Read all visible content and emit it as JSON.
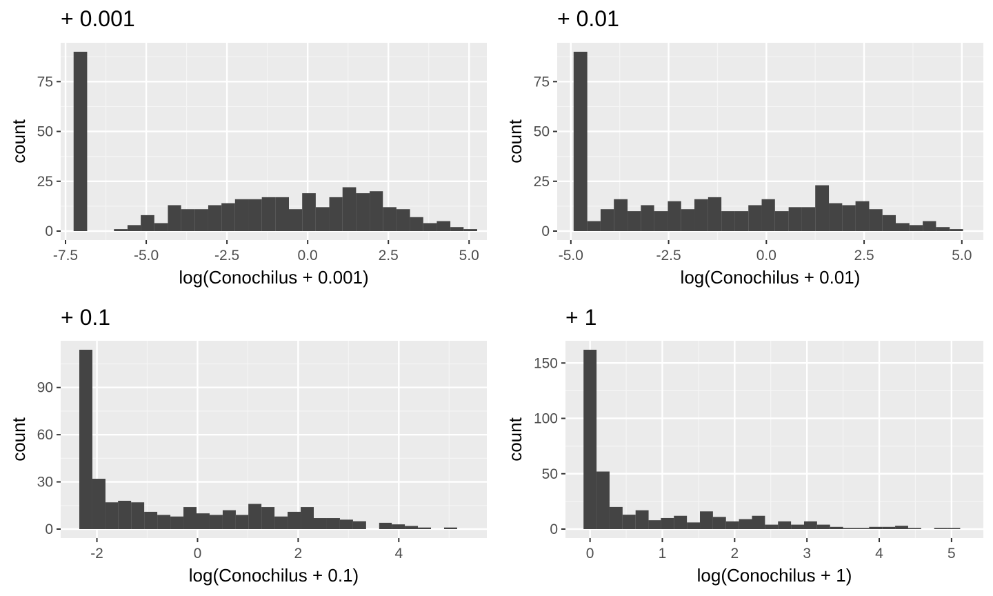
{
  "colors": {
    "panel_bg": "#ebebeb",
    "grid_major": "#ffffff",
    "grid_minor": "#f5f5f5",
    "bar_fill": "#444444",
    "tick_text": "#4d4d4d",
    "tick_mark": "#333333",
    "text": "#000000"
  },
  "chart_data": [
    {
      "type": "bar",
      "title": "+ 0.001",
      "xlabel": "log(Conochilus + 0.001)",
      "ylabel": "count",
      "xlim": [
        -7.65,
        5.55
      ],
      "ylim": [
        -4.5,
        94.5
      ],
      "xticks": [
        -7.5,
        -5.0,
        -2.5,
        0.0,
        2.5,
        5.0
      ],
      "xtick_labels": [
        "-7.5",
        "-5.0",
        "-2.5",
        "0.0",
        "2.5",
        "5.0"
      ],
      "yticks": [
        0,
        25,
        50,
        75
      ],
      "ytick_labels": [
        "0",
        "25",
        "50",
        "75"
      ],
      "grid": true,
      "bins": {
        "x0": [
          -7.25,
          -6.83,
          -6.42,
          -6.0,
          -5.58,
          -5.17,
          -4.75,
          -4.33,
          -3.92,
          -3.5,
          -3.08,
          -2.67,
          -2.25,
          -1.83,
          -1.42,
          -1.0,
          -0.58,
          -0.17,
          0.25,
          0.67,
          1.08,
          1.5,
          1.92,
          2.33,
          2.75,
          3.17,
          3.58,
          4.0,
          4.42,
          4.83
        ],
        "x1": [
          -6.83,
          -6.42,
          -6.0,
          -5.58,
          -5.17,
          -4.75,
          -4.33,
          -3.92,
          -3.5,
          -3.08,
          -2.67,
          -2.25,
          -1.83,
          -1.42,
          -1.0,
          -0.58,
          -0.17,
          0.25,
          0.67,
          1.08,
          1.5,
          1.92,
          2.33,
          2.75,
          3.17,
          3.58,
          4.0,
          4.42,
          4.83,
          5.25
        ],
        "counts": [
          90,
          0,
          0,
          1,
          3,
          8,
          4,
          13,
          11,
          11,
          13,
          14,
          16,
          16,
          17,
          17,
          11,
          19,
          12,
          17,
          22,
          19,
          20,
          12,
          11,
          7,
          4,
          5,
          2,
          1
        ]
      }
    },
    {
      "type": "bar",
      "title": "+ 0.01",
      "xlabel": "log(Conochilus + 0.01)",
      "ylabel": "count",
      "xlim": [
        -5.35,
        5.55
      ],
      "ylim": [
        -4.5,
        94.5
      ],
      "xticks": [
        -5.0,
        -2.5,
        0.0,
        2.5,
        5.0
      ],
      "xtick_labels": [
        "-5.0",
        "-2.5",
        "0.0",
        "2.5",
        "5.0"
      ],
      "yticks": [
        0,
        25,
        50,
        75
      ],
      "ytick_labels": [
        "0",
        "25",
        "50",
        "75"
      ],
      "grid": true,
      "bins": {
        "x0": [
          -4.93,
          -4.58,
          -4.24,
          -3.9,
          -3.55,
          -3.21,
          -2.87,
          -2.52,
          -2.18,
          -1.84,
          -1.49,
          -1.15,
          -0.81,
          -0.46,
          -0.12,
          0.22,
          0.57,
          0.91,
          1.25,
          1.6,
          1.94,
          2.28,
          2.63,
          2.97,
          3.31,
          3.66,
          4.0,
          4.34,
          4.69
        ],
        "x1": [
          -4.58,
          -4.24,
          -3.9,
          -3.55,
          -3.21,
          -2.87,
          -2.52,
          -2.18,
          -1.84,
          -1.49,
          -1.15,
          -0.81,
          -0.46,
          -0.12,
          0.22,
          0.57,
          0.91,
          1.25,
          1.6,
          1.94,
          2.28,
          2.63,
          2.97,
          3.31,
          3.66,
          4.0,
          4.34,
          4.69,
          5.03
        ],
        "counts": [
          90,
          5,
          11,
          16,
          10,
          13,
          10,
          15,
          11,
          16,
          17,
          10,
          10,
          13,
          16,
          10,
          12,
          12,
          23,
          14,
          13,
          15,
          11,
          8,
          4,
          3,
          5,
          2,
          1
        ]
      }
    },
    {
      "type": "bar",
      "title": "+ 0.1",
      "xlabel": "log(Conochilus + 0.1)",
      "ylabel": "count",
      "xlim": [
        -2.72,
        5.75
      ],
      "ylim": [
        -5.7,
        119.7
      ],
      "xticks": [
        -2,
        0,
        2,
        4
      ],
      "xtick_labels": [
        "-2",
        "0",
        "2",
        "4"
      ],
      "yticks": [
        0,
        30,
        60,
        90
      ],
      "ytick_labels": [
        "0",
        "30",
        "60",
        "90"
      ],
      "grid": true,
      "bins": {
        "x0": [
          -2.35,
          -2.09,
          -1.83,
          -1.58,
          -1.32,
          -1.06,
          -0.8,
          -0.54,
          -0.28,
          -0.02,
          0.24,
          0.5,
          0.76,
          1.01,
          1.27,
          1.53,
          1.79,
          2.05,
          2.31,
          2.57,
          2.83,
          3.09,
          3.35,
          3.61,
          3.86,
          4.12,
          4.38,
          4.64,
          4.9
        ],
        "x1": [
          -2.09,
          -1.83,
          -1.58,
          -1.32,
          -1.06,
          -0.8,
          -0.54,
          -0.28,
          -0.02,
          0.24,
          0.5,
          0.76,
          1.01,
          1.27,
          1.53,
          1.79,
          2.05,
          2.31,
          2.57,
          2.83,
          3.09,
          3.35,
          3.61,
          3.86,
          4.12,
          4.38,
          4.64,
          4.9,
          5.16
        ],
        "counts": [
          114,
          32,
          17,
          18,
          17,
          11,
          9,
          8,
          14,
          10,
          9,
          12,
          9,
          16,
          14,
          8,
          11,
          14,
          7,
          7,
          6,
          5,
          0,
          4,
          3,
          2,
          1,
          0,
          1
        ]
      }
    },
    {
      "type": "bar",
      "title": "+ 1",
      "xlabel": "log(Conochilus + 1)",
      "ylabel": "count",
      "xlim": [
        -0.34,
        5.44
      ],
      "ylim": [
        -8.1,
        170.1
      ],
      "xticks": [
        0,
        1,
        2,
        3,
        4,
        5
      ],
      "xtick_labels": [
        "0",
        "1",
        "2",
        "3",
        "4",
        "5"
      ],
      "yticks": [
        0,
        50,
        100,
        150
      ],
      "ytick_labels": [
        "0",
        "50",
        "100",
        "150"
      ],
      "grid": true,
      "bins": {
        "x0": [
          -0.09,
          0.09,
          0.27,
          0.45,
          0.63,
          0.81,
          0.98,
          1.16,
          1.34,
          1.52,
          1.7,
          1.88,
          2.06,
          2.24,
          2.42,
          2.6,
          2.78,
          2.96,
          3.14,
          3.32,
          3.5,
          3.68,
          3.86,
          4.04,
          4.22,
          4.4,
          4.58,
          4.76,
          4.94
        ],
        "x1": [
          0.09,
          0.27,
          0.45,
          0.63,
          0.81,
          0.98,
          1.16,
          1.34,
          1.52,
          1.7,
          1.88,
          2.06,
          2.24,
          2.42,
          2.6,
          2.78,
          2.96,
          3.14,
          3.32,
          3.5,
          3.68,
          3.86,
          4.04,
          4.22,
          4.4,
          4.58,
          4.76,
          4.94,
          5.12
        ],
        "counts": [
          162,
          52,
          20,
          13,
          17,
          8,
          10,
          12,
          6,
          16,
          11,
          7,
          9,
          12,
          4,
          7,
          4,
          7,
          4,
          2,
          1,
          1,
          2,
          2,
          3,
          1,
          0,
          1,
          1
        ]
      }
    }
  ]
}
